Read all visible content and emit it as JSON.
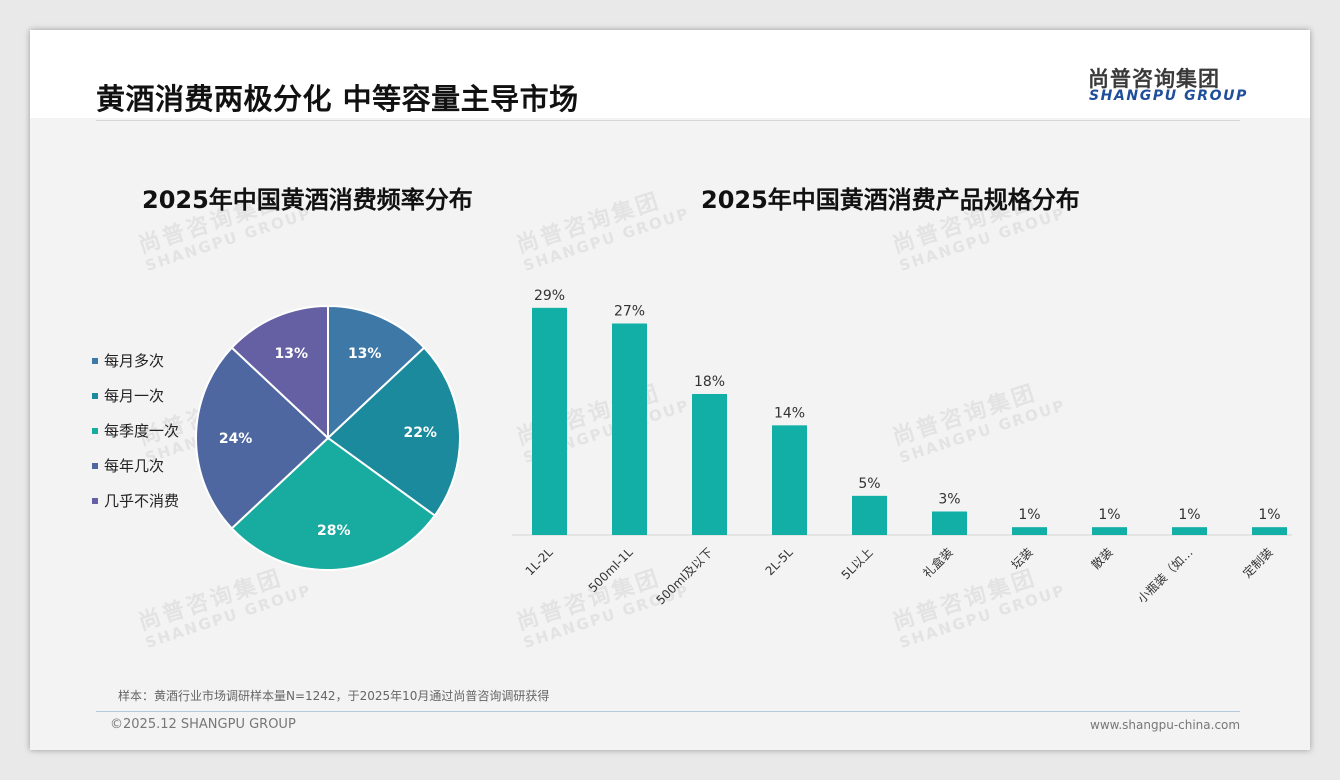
{
  "header": {
    "title": "黄酒消费两极分化 中等容量主导市场",
    "logo_cn": "尚普咨询集团",
    "logo_en": "SHANGPU GROUP"
  },
  "watermark": {
    "cn": "尚普咨询集团",
    "en": "SHANGPU GROUP"
  },
  "footer": {
    "source": "样本：黄酒行业市场调研样本量N=1242，于2025年10月通过尚普咨询调研获得",
    "copyright": "©2025.12 SHANGPU GROUP",
    "website": "www.shangpu-china.com"
  },
  "chart_data": [
    {
      "type": "pie",
      "title": "2025年中国黄酒消费频率分布",
      "categories": [
        "每月多次",
        "每月一次",
        "每季度一次",
        "每年几次",
        "几乎不消费"
      ],
      "values": [
        13,
        22,
        28,
        24,
        13
      ],
      "labels": [
        "13%",
        "22%",
        "28%",
        "24%",
        "13%"
      ],
      "colors": [
        "#3d78a6",
        "#1b8a9d",
        "#18ab9f",
        "#4f67a0",
        "#6560a3"
      ],
      "legend": "left"
    },
    {
      "type": "bar",
      "title": "2025年中国黄酒消费产品规格分布",
      "categories": [
        "1L-2L",
        "500ml-1L",
        "500ml及以下",
        "2L-5L",
        "5L以上",
        "礼盒装",
        "坛装",
        "散装",
        "小瓶装（如…",
        "定制装"
      ],
      "values": [
        29,
        27,
        18,
        14,
        5,
        3,
        1,
        1,
        1,
        1
      ],
      "labels": [
        "29%",
        "27%",
        "18%",
        "14%",
        "5%",
        "3%",
        "1%",
        "1%",
        "1%",
        "1%"
      ],
      "color": "#12afa7",
      "ylim": [
        0,
        30
      ],
      "grid": false
    }
  ]
}
